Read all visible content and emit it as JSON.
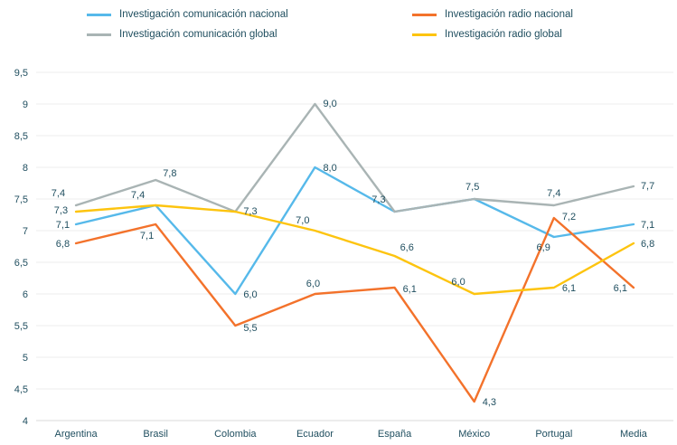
{
  "chart_data": {
    "type": "line",
    "title": "",
    "categories": [
      "Argentina",
      "Brasil",
      "Colombia",
      "Ecuador",
      "España",
      "México",
      "Portugal",
      "Media"
    ],
    "y_axis": {
      "min": 4,
      "max": 9.5,
      "step": 0.5,
      "tick_labels": [
        "4",
        "4,5",
        "5",
        "5,5",
        "6",
        "6,5",
        "7",
        "7,5",
        "8",
        "8,5",
        "9",
        "9,5"
      ]
    },
    "grid": true,
    "grid_color": "#ededed",
    "axis_color": "#d8d8d8",
    "text_color": "#1f4e5f",
    "legend_position": "top",
    "draw_order": [
      0,
      2,
      1,
      3
    ],
    "series": [
      {
        "name": "Investigación comunicación nacional",
        "color": "#56b9ea",
        "values": [
          7.1,
          7.4,
          6.0,
          8.0,
          7.3,
          7.5,
          6.9,
          7.1
        ],
        "labels": [
          {
            "i": 0,
            "text": "7,1",
            "dx": -7,
            "dy": 4,
            "anchor": "end"
          },
          {
            "i": 1,
            "text": "7,4",
            "dx": -12,
            "dy": -8,
            "anchor": "end"
          },
          {
            "i": 2,
            "text": "6,0",
            "dx": 9,
            "dy": 4,
            "anchor": "start"
          },
          {
            "i": 3,
            "text": "8,0",
            "dx": 9,
            "dy": 4,
            "anchor": "start"
          },
          {
            "i": 6,
            "text": "6,9",
            "dx": -4,
            "dy": 15,
            "anchor": "end"
          },
          {
            "i": 7,
            "text": "7,1",
            "dx": 8,
            "dy": 4,
            "anchor": "start"
          }
        ]
      },
      {
        "name": "Investigación radio nacional",
        "color": "#f3722b",
        "values": [
          6.8,
          7.1,
          5.5,
          6.0,
          6.1,
          4.3,
          7.2,
          6.1
        ],
        "labels": [
          {
            "i": 0,
            "text": "6,8",
            "dx": -7,
            "dy": 4,
            "anchor": "end"
          },
          {
            "i": 1,
            "text": "7,1",
            "dx": -2,
            "dy": 16,
            "anchor": "end"
          },
          {
            "i": 2,
            "text": "5,5",
            "dx": 9,
            "dy": 6,
            "anchor": "start"
          },
          {
            "i": 3,
            "text": "6,0",
            "dx": -2,
            "dy": -8,
            "anchor": "middle"
          },
          {
            "i": 4,
            "text": "6,1",
            "dx": 9,
            "dy": 5,
            "anchor": "start"
          },
          {
            "i": 5,
            "text": "4,3",
            "dx": 9,
            "dy": 4,
            "anchor": "start"
          },
          {
            "i": 6,
            "text": "7,2",
            "dx": 9,
            "dy": 2,
            "anchor": "start"
          },
          {
            "i": 7,
            "text": "6,1",
            "dx": -7,
            "dy": 4,
            "anchor": "end"
          }
        ]
      },
      {
        "name": "Investigación comunicación global",
        "color": "#a9b4b4",
        "values": [
          7.4,
          7.8,
          7.3,
          9.0,
          7.3,
          7.5,
          7.4,
          7.7
        ],
        "labels": [
          {
            "i": 0,
            "text": "7,4",
            "dx": -12,
            "dy": -10,
            "anchor": "end"
          },
          {
            "i": 1,
            "text": "7,8",
            "dx": 8,
            "dy": -4,
            "anchor": "start"
          },
          {
            "i": 2,
            "text": "7,3",
            "dx": 9,
            "dy": 3,
            "anchor": "start"
          },
          {
            "i": 3,
            "text": "9,0",
            "dx": 9,
            "dy": 3,
            "anchor": "start"
          },
          {
            "i": 4,
            "text": "7,3",
            "dx": -10,
            "dy": -10,
            "anchor": "end"
          },
          {
            "i": 5,
            "text": "7,5",
            "dx": -2,
            "dy": -10,
            "anchor": "middle"
          },
          {
            "i": 6,
            "text": "7,4",
            "dx": 0,
            "dy": -10,
            "anchor": "middle"
          },
          {
            "i": 7,
            "text": "7,7",
            "dx": 8,
            "dy": 3,
            "anchor": "start"
          }
        ]
      },
      {
        "name": "Investigación radio global",
        "color": "#fdc40f",
        "values": [
          7.3,
          7.4,
          7.3,
          7.0,
          6.6,
          6.0,
          6.1,
          6.8
        ],
        "labels": [
          {
            "i": 0,
            "text": "7,3",
            "dx": -9,
            "dy": 2,
            "anchor": "end"
          },
          {
            "i": 3,
            "text": "7,0",
            "dx": -6,
            "dy": -8,
            "anchor": "end"
          },
          {
            "i": 4,
            "text": "6,6",
            "dx": 6,
            "dy": -6,
            "anchor": "start"
          },
          {
            "i": 5,
            "text": "6,0",
            "dx": -10,
            "dy": -10,
            "anchor": "end"
          },
          {
            "i": 6,
            "text": "6,1",
            "dx": 9,
            "dy": 4,
            "anchor": "start"
          },
          {
            "i": 7,
            "text": "6,8",
            "dx": 8,
            "dy": 4,
            "anchor": "start"
          }
        ]
      }
    ]
  }
}
